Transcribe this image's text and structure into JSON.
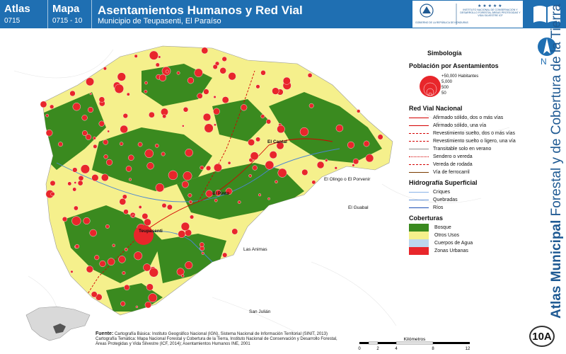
{
  "header": {
    "atlas_label": "Atlas",
    "atlas_code": "0715",
    "mapa_label": "Mapa",
    "mapa_code": "0715 - 10",
    "title": "Asentamientos Humanos y Red Vial",
    "subtitle": "Municipio de Teupasenti, El Paraíso",
    "logo_left": "GOBIERNO DE LA REPÚBLICA DE HONDURAS",
    "logo_right": "INSTITUTO NACIONAL DE CONSERVACIÓN Y DESARROLLO FORESTAL ÁREAS PROTEGIDAS Y VIDA SILVESTRE ICF"
  },
  "side": {
    "north": "N",
    "title_bold": "Atlas Municipal",
    "title_rest": " Forestal y de Cobertura de la Tierra",
    "badge": "10A"
  },
  "map": {
    "places": [
      {
        "label": "El Cantal"
      },
      {
        "label": "El Olingo o El Porvenir"
      },
      {
        "label": "El Guabal"
      },
      {
        "label": "Teupasenti"
      },
      {
        "label": "Las Animas"
      },
      {
        "label": "San Julián"
      },
      {
        "label": "El Pinto"
      }
    ]
  },
  "legend": {
    "title": "Simbología",
    "population": {
      "title": "Población por Asentamientos",
      "items": [
        "+50,000 Habitantes",
        "5,000",
        "500",
        "50"
      ]
    },
    "roads": {
      "title": "Red Vial Nacional",
      "items": [
        {
          "label": "Afirmado sólido, dos o más vías",
          "color": "#d40000",
          "style": "solid"
        },
        {
          "label": "Afirmado sólido, una vía",
          "color": "#d40000",
          "style": "solid"
        },
        {
          "label": "Revestimiento suelto, dos o más vías",
          "color": "#d40000",
          "style": "dashed"
        },
        {
          "label": "Revestimiento suelto o ligero, una vía",
          "color": "#d40000",
          "style": "dashed"
        },
        {
          "label": "Transitable solo en verano",
          "color": "#888888",
          "style": "solid"
        },
        {
          "label": "Sendero o vereda",
          "color": "#d40000",
          "style": "dotted"
        },
        {
          "label": "Vereda de rodada",
          "color": "#d40000",
          "style": "dashed"
        },
        {
          "label": "Vía de ferrocarril",
          "color": "#7a3b00",
          "style": "solid"
        }
      ]
    },
    "hydro": {
      "title": "Hidrografía Superficial",
      "items": [
        {
          "label": "Criques",
          "color": "#8ab4e8"
        },
        {
          "label": "Quebradas",
          "color": "#5b8fd6"
        },
        {
          "label": "Ríos",
          "color": "#1b4fb5"
        }
      ]
    },
    "cover": {
      "title": "Coberturas",
      "items": [
        {
          "label": "Bosque",
          "color": "#3a8a1f"
        },
        {
          "label": "Otros Usos",
          "color": "#f5f08c"
        },
        {
          "label": "Cuerpos de Agua",
          "color": "#bcd7ee"
        },
        {
          "label": "Zonas Urbanas",
          "color": "#e8262b"
        }
      ]
    }
  },
  "footer": {
    "source_label": "Fuente:",
    "line1": "Cartografía Básica: Instituto Geográfico Nacional (IGN), Sistema Nacional de Información Territorial (SINIT, 2013)",
    "line2": "Cartografía Temática: Mapa Nacional Forestal y Cobertura de la Tierra, Instituto Nacional de Conservación y Desarrollo Forestal,",
    "line3": "Áreas Protegidas y Vida Silvestre (ICF, 2014); Asentamientos Humanos INE, 2001"
  },
  "scale": {
    "unit": "Kilómetros",
    "ticks": [
      "0",
      "2",
      "4",
      "8",
      "12"
    ]
  },
  "colors": {
    "header_blue": "#1f6fb2",
    "forest": "#3a8a1f",
    "other_uses": "#f5f08c",
    "settlement": "#e8262b"
  }
}
